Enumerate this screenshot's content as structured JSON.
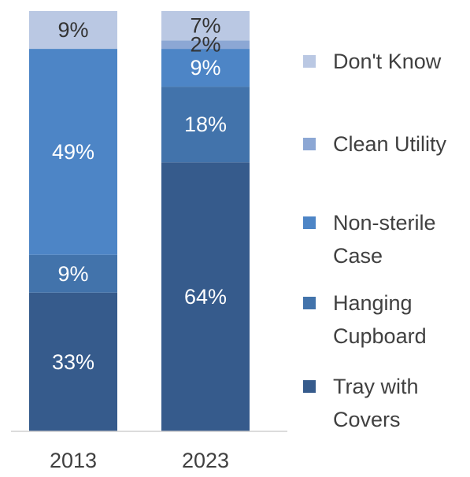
{
  "chart_data": {
    "type": "bar",
    "stacked": true,
    "categories": [
      "2013",
      "2023"
    ],
    "series": [
      {
        "name": "Tray with Covers",
        "legend_lines": [
          "Tray with",
          "Covers"
        ],
        "color": "#365b8c",
        "values": [
          33,
          64
        ],
        "labels": [
          "33%",
          "64%"
        ]
      },
      {
        "name": "Hanging Cupboard",
        "legend_lines": [
          "Hanging",
          "Cupboard"
        ],
        "color": "#4273ab",
        "values": [
          9,
          18
        ],
        "labels": [
          "9%",
          "18%"
        ]
      },
      {
        "name": "Non-sterile Case",
        "legend_lines": [
          "Non-sterile",
          "Case"
        ],
        "color": "#4d85c6",
        "values": [
          49,
          9
        ],
        "labels": [
          "49%",
          "9%"
        ]
      },
      {
        "name": "Clean Utility",
        "legend_lines": [
          "Clean Utility"
        ],
        "color": "#8ca7d4",
        "values": [
          0,
          2
        ],
        "labels": [
          "",
          "2%"
        ]
      },
      {
        "name": "Don't Know",
        "legend_lines": [
          "Don't Know"
        ],
        "color": "#bac8e3",
        "values": [
          9,
          7
        ],
        "labels": [
          "9%",
          "7%"
        ]
      }
    ],
    "ylim": [
      0,
      100
    ],
    "legend_position": "right"
  }
}
